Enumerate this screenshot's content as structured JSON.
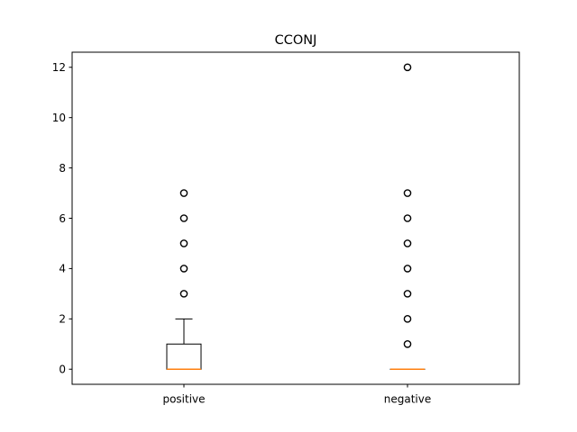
{
  "chart_data": {
    "type": "box",
    "title": "CCONJ",
    "xlabel": "",
    "ylabel": "",
    "ylim": [
      -0.6,
      12.6
    ],
    "yticks": [
      0,
      2,
      4,
      6,
      8,
      10,
      12
    ],
    "grid": false,
    "categories": [
      "positive",
      "negative"
    ],
    "boxes": [
      {
        "name": "positive",
        "whisker_low": 0,
        "q1": 0,
        "median": 0,
        "q3": 1,
        "whisker_high": 2,
        "outliers": [
          3,
          4,
          5,
          6,
          7
        ]
      },
      {
        "name": "negative",
        "whisker_low": 0,
        "q1": 0,
        "median": 0,
        "q3": 0,
        "whisker_high": 0,
        "outliers": [
          1,
          2,
          3,
          4,
          5,
          6,
          7,
          12
        ]
      }
    ],
    "colors": {
      "box": "#000000",
      "median": "#ff7f0e",
      "outlier": "#000000"
    }
  }
}
